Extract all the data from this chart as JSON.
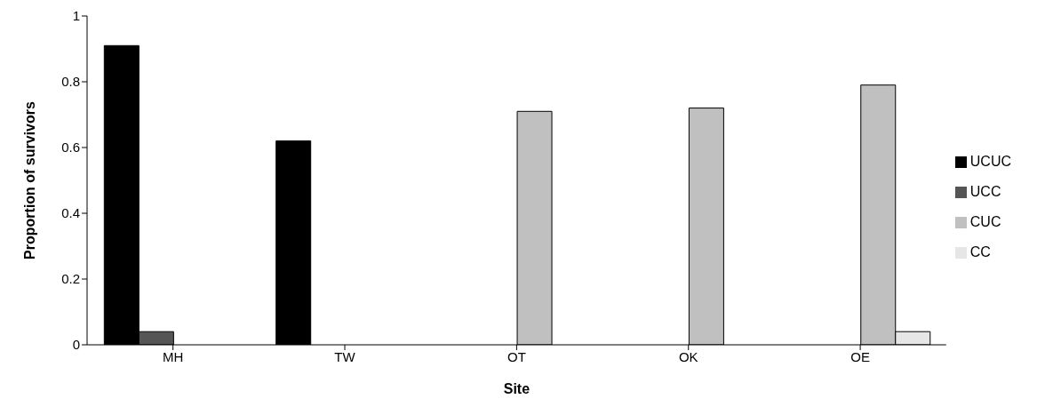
{
  "chart_data": {
    "type": "bar",
    "xlabel": "Site",
    "ylabel": "Proportion of survivors",
    "categories": [
      "MH",
      "TW",
      "OT",
      "OK",
      "OE"
    ],
    "series": [
      {
        "name": "UCUC",
        "color": "#000000",
        "values": [
          0.91,
          0.62,
          null,
          null,
          null
        ]
      },
      {
        "name": "UCC",
        "color": "#555555",
        "values": [
          0.04,
          null,
          null,
          null,
          null
        ]
      },
      {
        "name": "CUC",
        "color": "#c0c0c0",
        "values": [
          null,
          null,
          0.71,
          0.72,
          0.79
        ]
      },
      {
        "name": "CC",
        "color": "#e6e6e6",
        "values": [
          null,
          null,
          null,
          null,
          0.04
        ]
      }
    ],
    "ylim": [
      0,
      1
    ],
    "yticks": [
      0,
      0.2,
      0.4,
      0.6,
      0.8,
      1
    ],
    "grid": false,
    "legend": "right"
  }
}
